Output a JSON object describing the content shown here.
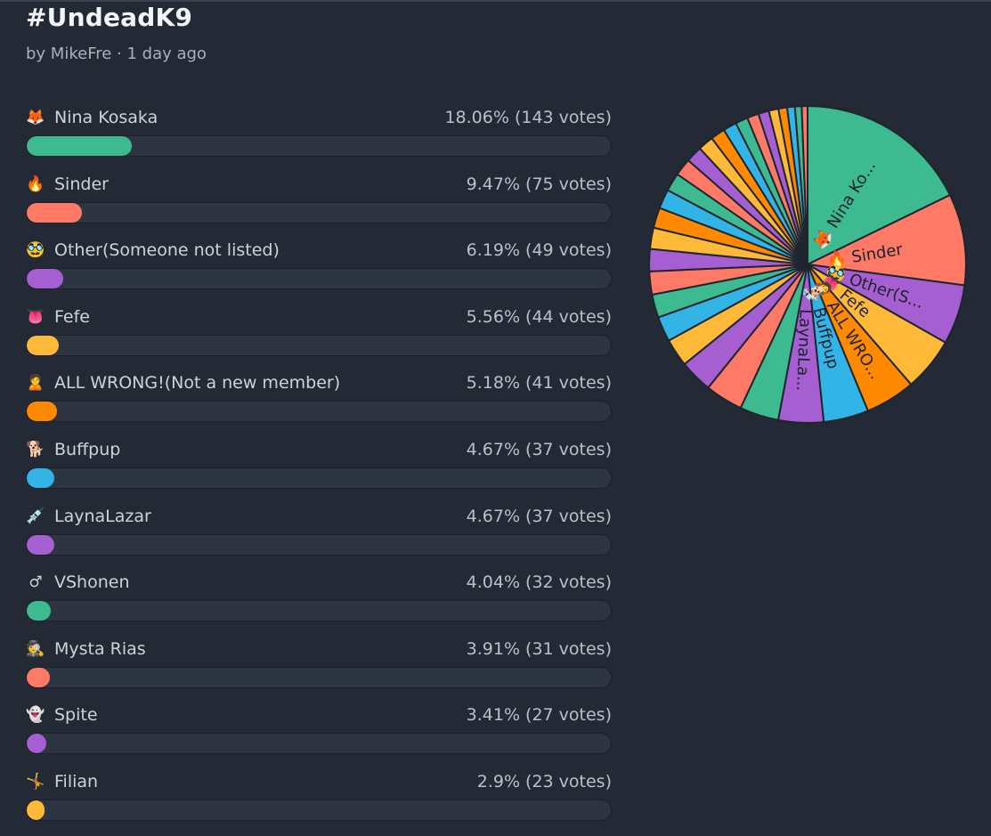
{
  "poll": {
    "title": "#UndeadK9",
    "meta": "by MikeFre · 1 day ago"
  },
  "chart_data": {
    "type": "pie",
    "colors_cycle": [
      "#3dba8f",
      "#ff7a66",
      "#a65fd1",
      "#ffb938",
      "#ff8a00",
      "#33b4e6"
    ],
    "options": [
      {
        "emoji": "🦊",
        "label": "Nina Kosaka",
        "percent": 18.06,
        "votes": 143,
        "stats": "18.06% (143 votes)",
        "color": "#3dba8f",
        "pie_label": "Nina Ko..."
      },
      {
        "emoji": "🔥",
        "label": "Sinder",
        "percent": 9.47,
        "votes": 75,
        "stats": "9.47% (75 votes)",
        "color": "#ff7a66",
        "pie_label": "Sinder"
      },
      {
        "emoji": "🥸",
        "label": "Other(Someone not listed)",
        "percent": 6.19,
        "votes": 49,
        "stats": "6.19% (49 votes)",
        "color": "#a65fd1",
        "pie_label": "Other(S..."
      },
      {
        "emoji": "👅",
        "label": "Fefe",
        "percent": 5.56,
        "votes": 44,
        "stats": "5.56% (44 votes)",
        "color": "#ffb938",
        "pie_label": "Fefe"
      },
      {
        "emoji": "🙎",
        "label": "ALL WRONG!(Not a new member)",
        "percent": 5.18,
        "votes": 41,
        "stats": "5.18% (41 votes)",
        "color": "#ff8a00",
        "pie_label": "ALL WRO..."
      },
      {
        "emoji": "🐕",
        "label": "Buffpup",
        "percent": 4.67,
        "votes": 37,
        "stats": "4.67% (37 votes)",
        "color": "#33b4e6",
        "pie_label": "Buffpup"
      },
      {
        "emoji": "💉",
        "label": "LaynaLazar",
        "percent": 4.67,
        "votes": 37,
        "stats": "4.67% (37 votes)",
        "color": "#a65fd1",
        "pie_label": "LaynaLa..."
      },
      {
        "emoji": "♂",
        "label": "VShonen",
        "percent": 4.04,
        "votes": 32,
        "stats": "4.04% (32 votes)",
        "color": "#3dba8f",
        "pie_label": ""
      },
      {
        "emoji": "🕵",
        "label": "Mysta Rias",
        "percent": 3.91,
        "votes": 31,
        "stats": "3.91% (31 votes)",
        "color": "#ff7a66",
        "pie_label": ""
      },
      {
        "emoji": "👻",
        "label": "Spite",
        "percent": 3.41,
        "votes": 27,
        "stats": "3.41% (27 votes)",
        "color": "#a65fd1",
        "pie_label": ""
      },
      {
        "emoji": "🤸",
        "label": "Filian",
        "percent": 2.9,
        "votes": 23,
        "stats": "2.9% (23 votes)",
        "color": "#ffb938",
        "pie_label": ""
      }
    ],
    "remaining_slices_percent": [
      2.6,
      2.4,
      2.4,
      2.3,
      2.2,
      2.1,
      2.0,
      1.9,
      1.8,
      1.7,
      1.6,
      1.5,
      1.4,
      1.3,
      1.2,
      1.1,
      1.0,
      0.9,
      0.8,
      0.7,
      0.6
    ]
  }
}
